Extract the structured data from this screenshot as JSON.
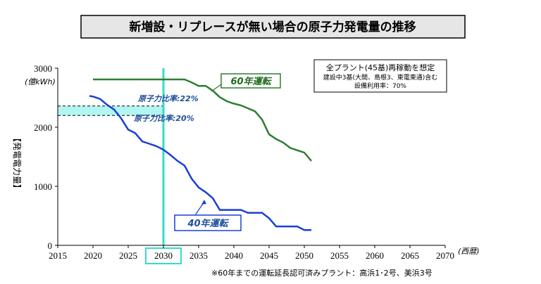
{
  "colors": {
    "series_60": "#2e7d32",
    "series_40": "#1a3fd6",
    "highlight": "#33dccc",
    "band_fill": "#b3f5f3",
    "title_bg": "#e6e6e6"
  },
  "chart_data": {
    "type": "line",
    "title": "新増設・リプレースが無い場合の原子力発電量の推移",
    "ylabel": "【発電電力量】",
    "y_unit": "(億kWh)",
    "x_unit": "(西暦)",
    "xlim": [
      2015,
      2070
    ],
    "ylim": [
      0,
      3000
    ],
    "x_ticks": [
      "2015",
      "2020",
      "2025",
      "2030",
      "2035",
      "2040",
      "2045",
      "2050",
      "2055",
      "2060",
      "2065",
      "2070"
    ],
    "y_ticks": [
      "0",
      "1000",
      "2000",
      "3000"
    ],
    "grid": false,
    "highlight_year": "2030",
    "band": {
      "y_low": 2200,
      "y_high": 2360,
      "x_end": 2030
    },
    "series": [
      {
        "name": "60年運転",
        "points": [
          [
            2020,
            2810
          ],
          [
            2021,
            2810
          ],
          [
            2022,
            2810
          ],
          [
            2023,
            2810
          ],
          [
            2024,
            2810
          ],
          [
            2025,
            2810
          ],
          [
            2026,
            2810
          ],
          [
            2027,
            2810
          ],
          [
            2028,
            2810
          ],
          [
            2029,
            2810
          ],
          [
            2030,
            2810
          ],
          [
            2031,
            2810
          ],
          [
            2032,
            2810
          ],
          [
            2033,
            2810
          ],
          [
            2034,
            2760
          ],
          [
            2035,
            2700
          ],
          [
            2036,
            2700
          ],
          [
            2037,
            2620
          ],
          [
            2038,
            2510
          ],
          [
            2039,
            2440
          ],
          [
            2040,
            2400
          ],
          [
            2041,
            2370
          ],
          [
            2042,
            2320
          ],
          [
            2043,
            2270
          ],
          [
            2044,
            2130
          ],
          [
            2045,
            1880
          ],
          [
            2046,
            1800
          ],
          [
            2047,
            1740
          ],
          [
            2048,
            1650
          ],
          [
            2049,
            1610
          ],
          [
            2050,
            1570
          ],
          [
            2051,
            1430
          ]
        ]
      },
      {
        "name": "40年運転",
        "points": [
          [
            2019.5,
            2530
          ],
          [
            2020,
            2520
          ],
          [
            2021,
            2480
          ],
          [
            2022,
            2380
          ],
          [
            2023,
            2300
          ],
          [
            2024,
            2150
          ],
          [
            2025,
            1960
          ],
          [
            2026,
            1900
          ],
          [
            2027,
            1760
          ],
          [
            2028,
            1720
          ],
          [
            2029,
            1680
          ],
          [
            2030,
            1620
          ],
          [
            2031,
            1530
          ],
          [
            2032,
            1430
          ],
          [
            2033,
            1350
          ],
          [
            2034,
            1130
          ],
          [
            2035,
            980
          ],
          [
            2036,
            900
          ],
          [
            2037,
            800
          ],
          [
            2038,
            600
          ],
          [
            2039,
            600
          ],
          [
            2040,
            600
          ],
          [
            2041,
            600
          ],
          [
            2042,
            550
          ],
          [
            2043,
            550
          ],
          [
            2044,
            550
          ],
          [
            2045,
            460
          ],
          [
            2046,
            320
          ],
          [
            2047,
            320
          ],
          [
            2048,
            320
          ],
          [
            2049,
            320
          ],
          [
            2050,
            260
          ],
          [
            2051,
            260
          ]
        ]
      }
    ],
    "annotations": {
      "label_60": "60年運転",
      "label_40": "40年運転",
      "ratio_22": "原子力比率:22%",
      "ratio_20": "原子力比率:20%",
      "info_box": [
        "全プラント(45基)再稼動を想定",
        "建設中3基(大間、島根3、東電東通)含む",
        "設備利用率：70%"
      ],
      "footnote": "※60年までの運転延長認可済みプラント：高浜1･2号、美浜3号"
    }
  }
}
